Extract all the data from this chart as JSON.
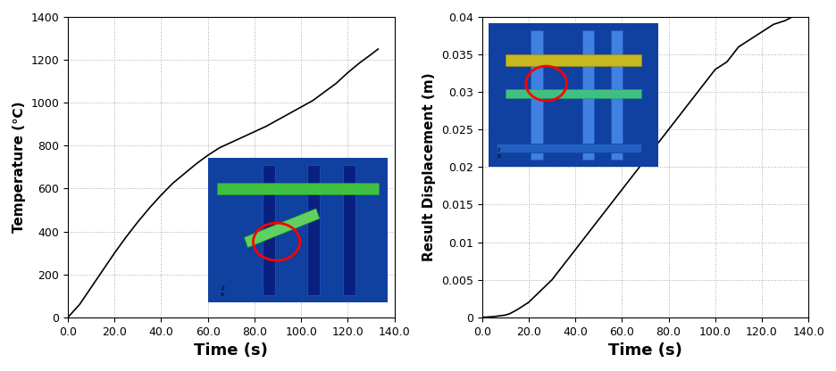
{
  "temp_time": [
    0,
    5,
    10,
    15,
    20,
    25,
    30,
    35,
    40,
    45,
    50,
    55,
    60,
    65,
    70,
    75,
    80,
    85,
    90,
    95,
    100,
    105,
    110,
    115,
    120,
    125,
    130,
    133
  ],
  "temp_values": [
    0,
    60,
    140,
    220,
    300,
    375,
    445,
    510,
    570,
    625,
    670,
    715,
    755,
    790,
    815,
    840,
    865,
    890,
    920,
    950,
    980,
    1010,
    1050,
    1090,
    1140,
    1185,
    1225,
    1250
  ],
  "disp_time": [
    0,
    5,
    10,
    12,
    15,
    20,
    25,
    30,
    35,
    40,
    45,
    50,
    55,
    60,
    65,
    70,
    75,
    80,
    85,
    90,
    95,
    100,
    105,
    110,
    115,
    120,
    125,
    130,
    133
  ],
  "disp_values": [
    0,
    0.0001,
    0.0003,
    0.0005,
    0.001,
    0.002,
    0.0035,
    0.005,
    0.007,
    0.009,
    0.011,
    0.013,
    0.015,
    0.017,
    0.019,
    0.021,
    0.023,
    0.025,
    0.027,
    0.029,
    0.031,
    0.033,
    0.034,
    0.036,
    0.037,
    0.038,
    0.039,
    0.0395,
    0.04
  ],
  "temp_xlim": [
    0,
    140
  ],
  "temp_ylim": [
    0,
    1400
  ],
  "temp_xticks": [
    0.0,
    20.0,
    40.0,
    60.0,
    80.0,
    100.0,
    120.0,
    140.0
  ],
  "temp_yticks": [
    0,
    200,
    400,
    600,
    800,
    1000,
    1200,
    1400
  ],
  "disp_xlim": [
    0,
    140
  ],
  "disp_ylim": [
    0,
    0.04
  ],
  "disp_xticks": [
    0.0,
    20.0,
    40.0,
    60.0,
    80.0,
    100.0,
    120.0,
    140.0
  ],
  "disp_yticks": [
    0,
    0.005,
    0.01,
    0.015,
    0.02,
    0.025,
    0.03,
    0.035,
    0.04
  ],
  "xlabel": "Time (s)",
  "ylabel_temp": "Temperature (℃)",
  "ylabel_disp": "Result Displacement (m)",
  "line_color": "#000000",
  "line_width": 1.2,
  "grid_color": "#aaaaaa",
  "grid_linestyle": "dotted",
  "bg_color": "#ffffff",
  "tick_fontsize": 9,
  "label_fontsize": 11,
  "xlabel_fontsize": 13,
  "inset_border_color": "#1a237e"
}
